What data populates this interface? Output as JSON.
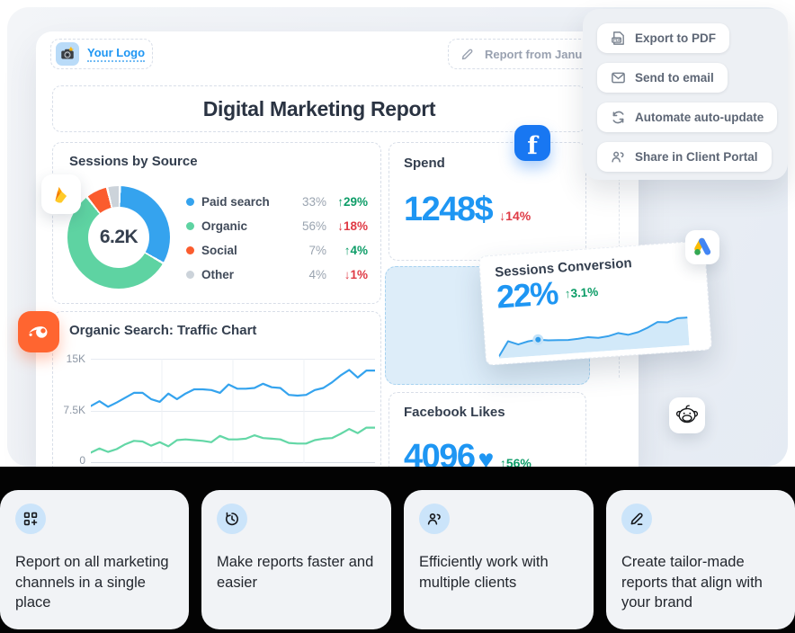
{
  "colors": {
    "accent_blue": "#1e96f3",
    "positive_green": "#0e9d68",
    "negative_red": "#df3a45",
    "facebook_blue": "#1877F2",
    "semrush_orange": "#ff6530",
    "band_black": "#030303"
  },
  "dashboard": {
    "logo_label": "Your Logo",
    "report_name": "Report from Janu",
    "title": "Digital Marketing Report",
    "spend": {
      "title": "Spend",
      "value": "1248$",
      "delta": "↓14%"
    },
    "conversion": {
      "title": "Sessions Conversion",
      "value": "22%",
      "delta": "↑3.1%"
    },
    "facebook_likes": {
      "title": "Facebook Likes",
      "value": "4096",
      "heart": "♥",
      "delta": "↑56%"
    }
  },
  "menu": {
    "items": [
      {
        "icon": "pdf-icon",
        "label": "Export to PDF"
      },
      {
        "icon": "email-icon",
        "label": "Send to email"
      },
      {
        "icon": "refresh-icon",
        "label": "Automate auto-update"
      },
      {
        "icon": "share-users-icon",
        "label": "Share in Client Portal"
      }
    ]
  },
  "features": [
    {
      "icon": "dashboard-add-icon",
      "text": "Report on all marketing channels in a single place"
    },
    {
      "icon": "clock-icon",
      "text": "Make reports faster and easier"
    },
    {
      "icon": "users-icon",
      "text": "Efficiently work with multiple clients"
    },
    {
      "icon": "pencil-icon",
      "text": "Create tailor-made reports that align with your brand"
    }
  ],
  "floating_icons": [
    "firebase-icon",
    "semrush-icon",
    "facebook-icon",
    "google-ads-icon",
    "mailchimp-icon"
  ],
  "chart_data": [
    {
      "type": "pie",
      "title": "Sessions by Source",
      "center_label": "6.2K",
      "segments": [
        {
          "label": "Paid search",
          "pct": 33,
          "pct_label": "33%",
          "change": "↑29%",
          "color": "#35a3ee"
        },
        {
          "label": "Organic",
          "pct": 56,
          "pct_label": "56%",
          "change": "↓18%",
          "color": "#5ed3a2"
        },
        {
          "label": "Social",
          "pct": 7,
          "pct_label": "7%",
          "change": "↑4%",
          "color": "#fb5c2e"
        },
        {
          "label": "Other",
          "pct": 4,
          "pct_label": "4%",
          "change": "↓1%",
          "color": "#ccd3da"
        }
      ]
    },
    {
      "type": "line",
      "title": "Organic Search: Traffic Chart",
      "yticks": [
        "15K",
        "7.5K",
        "0"
      ],
      "ymax": 15,
      "grid": true,
      "series": [
        {
          "color": "#34a3ee",
          "values": [
            8.2,
            8.9,
            8.1,
            8.7,
            9.4,
            10.1,
            10.1,
            9.2,
            8.8,
            10.0,
            9.2,
            10.0,
            10.6,
            10.6,
            10.5,
            10.1,
            11.3,
            10.7,
            10.7,
            10.8,
            11.4,
            10.9,
            10.8,
            9.8,
            9.7,
            9.8,
            10.5,
            10.8,
            11.6,
            12.6,
            13.4,
            12.3,
            13.3,
            13.3
          ]
        },
        {
          "color": "#63d7a6",
          "values": [
            1.5,
            2.1,
            1.6,
            2.0,
            2.7,
            3.2,
            3.1,
            2.5,
            3.0,
            2.4,
            3.3,
            3.4,
            3.3,
            3.2,
            3.0,
            3.9,
            3.4,
            3.4,
            3.5,
            4.0,
            3.6,
            3.5,
            3.4,
            2.9,
            2.8,
            2.8,
            3.3,
            3.5,
            3.6,
            4.2,
            4.9,
            4.3,
            5.1,
            5.1
          ]
        }
      ]
    },
    {
      "type": "area",
      "title": "Sessions Conversion",
      "values": [
        4,
        34,
        26,
        31,
        33,
        30,
        29,
        28,
        29,
        31,
        28,
        30,
        35,
        30,
        34,
        42,
        52,
        50,
        57,
        57
      ],
      "dot_index": 4,
      "line_color": "#37a1ec",
      "fill_color": "#d2e9f9"
    }
  ]
}
